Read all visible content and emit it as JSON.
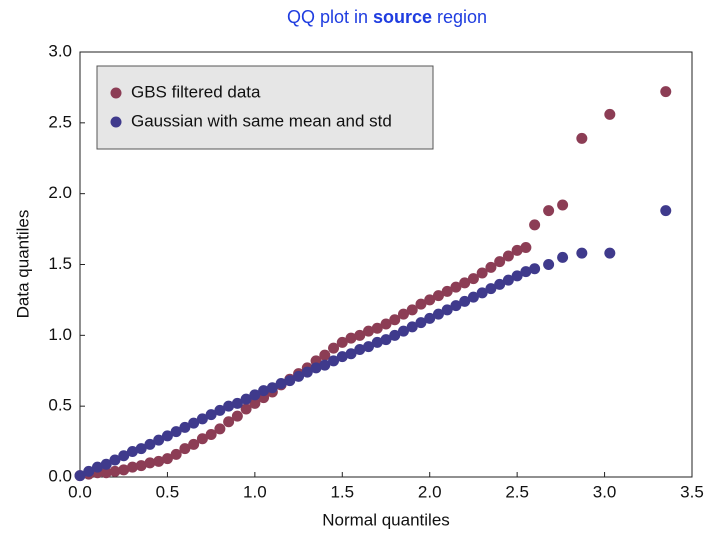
{
  "chart_data": {
    "type": "scatter",
    "title": [
      "QQ plot in ",
      "source",
      " region"
    ],
    "xlabel": "Normal quantiles",
    "ylabel": "Data quantiles",
    "legend": "upper left",
    "xlim": [
      0,
      3.5
    ],
    "ylim": [
      0,
      3.0
    ],
    "xticks": [
      {
        "value": 0,
        "label": "0.0"
      },
      0.5,
      {
        "value": 1,
        "label": "1.0"
      },
      1.5,
      {
        "value": 2,
        "label": "2.0"
      },
      2.5,
      {
        "value": 3,
        "label": "3.0"
      },
      3.5
    ],
    "yticks": [
      {
        "value": 0,
        "label": "0.0"
      },
      0.5,
      {
        "value": 1,
        "label": "1.0"
      },
      1.5,
      {
        "value": 2,
        "label": "2.0"
      },
      2.5,
      {
        "value": 3,
        "label": "3.0"
      }
    ],
    "x": [
      0,
      0.05,
      0.1,
      0.15,
      0.2,
      0.25,
      0.3,
      0.35,
      0.4,
      0.45,
      0.5,
      0.55,
      0.6,
      0.65,
      0.7,
      0.75,
      0.8,
      0.85,
      0.9,
      0.95,
      1.0,
      1.05,
      1.1,
      1.15,
      1.2,
      1.25,
      1.3,
      1.35,
      1.4,
      1.45,
      1.5,
      1.55,
      1.6,
      1.65,
      1.7,
      1.75,
      1.8,
      1.85,
      1.9,
      1.95,
      2.0,
      2.05,
      2.1,
      2.15,
      2.2,
      2.25,
      2.3,
      2.35,
      2.4,
      2.45,
      2.5,
      2.55,
      2.6,
      2.68,
      2.76,
      2.87,
      3.03,
      3.35
    ],
    "series": [
      {
        "name": "GBS filtered data",
        "color": "#8c3d55",
        "values": [
          0.01,
          0.02,
          0.03,
          0.03,
          0.04,
          0.05,
          0.07,
          0.08,
          0.1,
          0.11,
          0.13,
          0.16,
          0.2,
          0.23,
          0.27,
          0.3,
          0.34,
          0.39,
          0.43,
          0.48,
          0.52,
          0.56,
          0.6,
          0.65,
          0.69,
          0.73,
          0.77,
          0.82,
          0.86,
          0.91,
          0.95,
          0.98,
          1.0,
          1.03,
          1.05,
          1.08,
          1.11,
          1.15,
          1.18,
          1.22,
          1.25,
          1.28,
          1.31,
          1.34,
          1.37,
          1.4,
          1.44,
          1.48,
          1.52,
          1.56,
          1.6,
          1.62,
          1.78,
          1.88,
          1.92,
          2.39,
          2.56,
          2.72
        ]
      },
      {
        "name": "Gaussian with same mean and std",
        "color": "#3f3a8c",
        "values": [
          0.01,
          0.04,
          0.07,
          0.09,
          0.12,
          0.15,
          0.18,
          0.2,
          0.23,
          0.26,
          0.29,
          0.32,
          0.35,
          0.38,
          0.41,
          0.44,
          0.47,
          0.5,
          0.52,
          0.55,
          0.58,
          0.61,
          0.63,
          0.66,
          0.68,
          0.71,
          0.74,
          0.77,
          0.79,
          0.82,
          0.85,
          0.87,
          0.9,
          0.92,
          0.95,
          0.97,
          1.0,
          1.03,
          1.06,
          1.09,
          1.12,
          1.15,
          1.18,
          1.21,
          1.24,
          1.27,
          1.3,
          1.33,
          1.36,
          1.39,
          1.42,
          1.45,
          1.47,
          1.5,
          1.55,
          1.58,
          1.58,
          1.88
        ]
      }
    ]
  }
}
